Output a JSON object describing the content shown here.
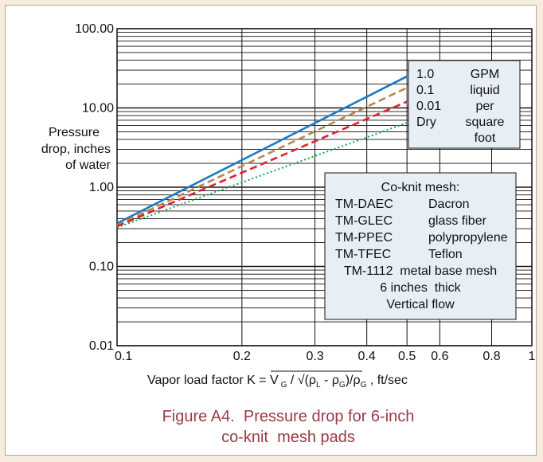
{
  "chart_data": {
    "type": "line",
    "x_scale": "log",
    "y_scale": "log",
    "xlim": [
      0.1,
      1
    ],
    "ylim": [
      0.01,
      100
    ],
    "x_ticks": [
      "0.1",
      "0.2",
      "0.3",
      "0.4",
      "0.5",
      "0.6",
      "0.8",
      "1"
    ],
    "x_tick_values": [
      0.1,
      0.2,
      0.3,
      0.4,
      0.5,
      0.6,
      0.8,
      1
    ],
    "y_ticks": [
      "100.00",
      "10.00",
      "1.00",
      "0.10",
      "0.01"
    ],
    "y_tick_values": [
      100,
      10,
      1,
      0.1,
      0.01
    ],
    "ylabel": [
      "Pressure",
      "drop, inches",
      "of water"
    ],
    "xlabel": {
      "prefix": "Vapor load factor K = V",
      "sub_g": "G",
      "mid": " / ",
      "sqrt_sign": "√",
      "rho": "ρ",
      "sub_l": "L",
      "minus": " - ",
      "close_slash": ")/",
      "suffix": " , ft/sec"
    },
    "series": [
      {
        "name": "1.0",
        "color": "#1a7ac0",
        "style": "solid",
        "x": [
          0.1,
          0.5
        ],
        "y": [
          0.35,
          25
        ]
      },
      {
        "name": "0.1",
        "color": "#b7874e",
        "style": "dashed",
        "x": [
          0.1,
          0.5
        ],
        "y": [
          0.33,
          18
        ]
      },
      {
        "name": "0.01",
        "color": "#e0212c",
        "style": "dashed",
        "x": [
          0.1,
          0.5
        ],
        "y": [
          0.32,
          12
        ]
      },
      {
        "name": "Dry",
        "color": "#1aa548",
        "style": "dotted",
        "x": [
          0.1,
          0.5
        ],
        "y": [
          0.31,
          6.5
        ]
      }
    ],
    "legend_units": [
      "GPM",
      "liquid",
      "per",
      "square",
      "foot"
    ],
    "info_box": [
      [
        "Co-knit mesh:"
      ],
      [
        "TM-DAEC",
        "Dacron"
      ],
      [
        "TM-GLEC",
        "glass fiber"
      ],
      [
        "TM-PPEC",
        "polypropylene"
      ],
      [
        "TM-TFEC",
        "Teflon"
      ],
      [
        "TM-1112  metal base mesh"
      ],
      [
        "6 inches  thick"
      ],
      [
        "Vertical flow"
      ]
    ],
    "caption": [
      "Figure A4.  Pressure drop for 6-inch",
      "co-knit  mesh pads"
    ]
  }
}
